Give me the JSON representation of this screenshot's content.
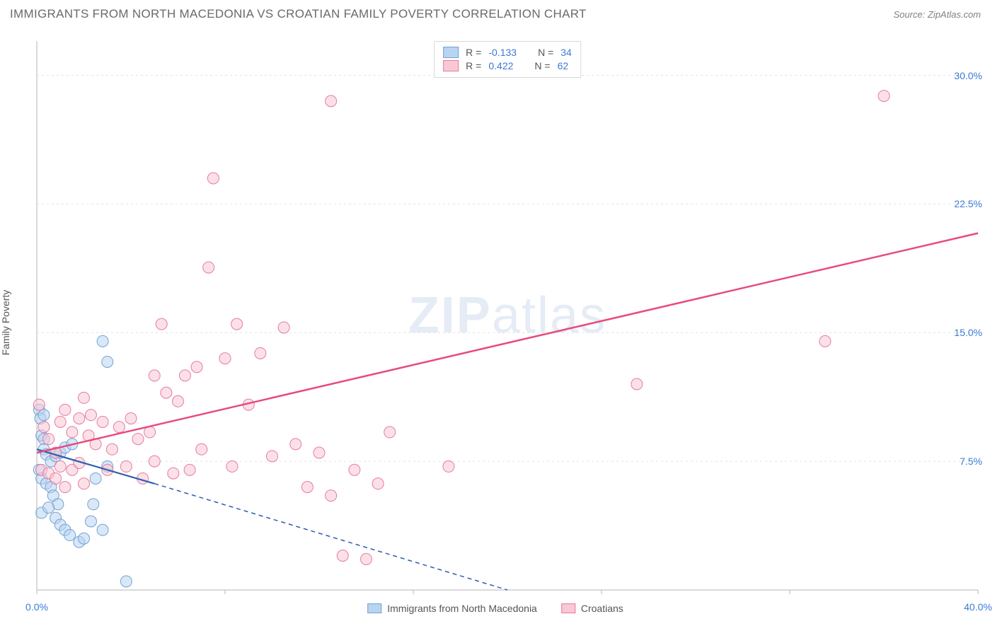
{
  "header": {
    "title": "IMMIGRANTS FROM NORTH MACEDONIA VS CROATIAN FAMILY POVERTY CORRELATION CHART",
    "source_prefix": "Source: ",
    "source_name": "ZipAtlas.com"
  },
  "watermark": {
    "zip": "ZIP",
    "atlas": "atlas"
  },
  "y_axis_label": "Family Poverty",
  "chart": {
    "type": "scatter",
    "xlim": [
      0,
      40
    ],
    "ylim": [
      0,
      32
    ],
    "x_ticks": [
      0,
      40
    ],
    "x_tick_labels": [
      "0.0%",
      "40.0%"
    ],
    "x_tick_minors": [
      8,
      16,
      24,
      32
    ],
    "y_ticks": [
      7.5,
      15.0,
      22.5,
      30.0
    ],
    "y_tick_labels": [
      "7.5%",
      "15.0%",
      "22.5%",
      "30.0%"
    ],
    "background_color": "#ffffff",
    "grid_color": "#e2e2e2",
    "axis_color": "#b5b5b5",
    "series": [
      {
        "id": "macedonia",
        "label": "Immigrants from North Macedonia",
        "R_label": "R = ",
        "R_value": "-0.133",
        "N_label": "N = ",
        "N_value": "34",
        "marker_fill": "#b9d4f0",
        "marker_stroke": "#6fa3d8",
        "fill_opacity": 0.55,
        "marker_radius": 8,
        "trend": {
          "x1": 0,
          "y1": 8.2,
          "x2": 5.0,
          "y2": 6.2,
          "ext_x2": 20.0,
          "ext_y2": 0.0,
          "color": "#2f5fb0",
          "width": 2.2,
          "dash": "6,5"
        },
        "points": [
          [
            0.1,
            10.5
          ],
          [
            0.15,
            10.0
          ],
          [
            0.2,
            9.0
          ],
          [
            0.3,
            8.8
          ],
          [
            0.3,
            8.2
          ],
          [
            0.4,
            7.9
          ],
          [
            0.1,
            7.0
          ],
          [
            0.2,
            6.5
          ],
          [
            0.4,
            6.2
          ],
          [
            0.6,
            6.0
          ],
          [
            0.7,
            5.5
          ],
          [
            0.9,
            5.0
          ],
          [
            0.2,
            4.5
          ],
          [
            0.5,
            4.8
          ],
          [
            0.8,
            4.2
          ],
          [
            1.0,
            3.8
          ],
          [
            1.2,
            3.5
          ],
          [
            1.4,
            3.2
          ],
          [
            1.8,
            2.8
          ],
          [
            2.0,
            3.0
          ],
          [
            2.3,
            4.0
          ],
          [
            2.4,
            5.0
          ],
          [
            2.8,
            3.5
          ],
          [
            3.0,
            7.2
          ],
          [
            0.6,
            7.5
          ],
          [
            0.8,
            7.8
          ],
          [
            1.0,
            8.0
          ],
          [
            1.2,
            8.3
          ],
          [
            1.5,
            8.5
          ],
          [
            0.3,
            10.2
          ],
          [
            2.8,
            14.5
          ],
          [
            3.0,
            13.3
          ],
          [
            3.8,
            0.5
          ],
          [
            2.5,
            6.5
          ]
        ]
      },
      {
        "id": "croatians",
        "label": "Croatians",
        "R_label": "R = ",
        "R_value": "0.422",
        "N_label": "N = ",
        "N_value": "62",
        "marker_fill": "#f8c9d4",
        "marker_stroke": "#e57ba0",
        "fill_opacity": 0.55,
        "marker_radius": 8,
        "trend": {
          "x1": 0,
          "y1": 8.0,
          "x2": 40.0,
          "y2": 20.8,
          "color": "#e84b7e",
          "width": 2.5
        },
        "points": [
          [
            0.2,
            7.0
          ],
          [
            0.5,
            6.8
          ],
          [
            0.8,
            6.5
          ],
          [
            1.0,
            7.2
          ],
          [
            1.2,
            6.0
          ],
          [
            1.5,
            7.0
          ],
          [
            1.8,
            7.4
          ],
          [
            2.0,
            6.2
          ],
          [
            2.2,
            9.0
          ],
          [
            2.5,
            8.5
          ],
          [
            2.8,
            9.8
          ],
          [
            3.0,
            7.0
          ],
          [
            3.2,
            8.2
          ],
          [
            3.5,
            9.5
          ],
          [
            3.8,
            7.2
          ],
          [
            4.0,
            10.0
          ],
          [
            4.3,
            8.8
          ],
          [
            4.5,
            6.5
          ],
          [
            4.8,
            9.2
          ],
          [
            5.0,
            7.5
          ],
          [
            5.3,
            15.5
          ],
          [
            5.5,
            11.5
          ],
          [
            5.8,
            6.8
          ],
          [
            6.0,
            11.0
          ],
          [
            6.3,
            12.5
          ],
          [
            6.5,
            7.0
          ],
          [
            6.8,
            13.0
          ],
          [
            7.0,
            8.2
          ],
          [
            7.3,
            18.8
          ],
          [
            7.5,
            24.0
          ],
          [
            8.0,
            13.5
          ],
          [
            8.3,
            7.2
          ],
          [
            8.5,
            15.5
          ],
          [
            9.0,
            10.8
          ],
          [
            9.5,
            13.8
          ],
          [
            10.0,
            7.8
          ],
          [
            10.5,
            15.3
          ],
          [
            11.0,
            8.5
          ],
          [
            11.5,
            6.0
          ],
          [
            12.0,
            8.0
          ],
          [
            12.5,
            5.5
          ],
          [
            12.5,
            28.5
          ],
          [
            13.0,
            2.0
          ],
          [
            13.5,
            7.0
          ],
          [
            14.0,
            1.8
          ],
          [
            14.5,
            6.2
          ],
          [
            15.0,
            9.2
          ],
          [
            17.5,
            7.2
          ],
          [
            25.5,
            12.0
          ],
          [
            33.5,
            14.5
          ],
          [
            36.0,
            28.8
          ],
          [
            0.1,
            10.8
          ],
          [
            0.3,
            9.5
          ],
          [
            0.5,
            8.8
          ],
          [
            0.8,
            8.0
          ],
          [
            1.0,
            9.8
          ],
          [
            1.2,
            10.5
          ],
          [
            1.5,
            9.2
          ],
          [
            1.8,
            10.0
          ],
          [
            2.0,
            11.2
          ],
          [
            2.3,
            10.2
          ],
          [
            5.0,
            12.5
          ]
        ]
      }
    ]
  }
}
